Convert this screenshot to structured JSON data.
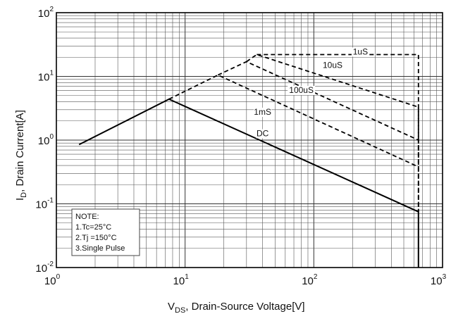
{
  "chart_data": {
    "type": "line",
    "title": "",
    "x_scale": "log",
    "y_scale": "log",
    "xlim": [
      1,
      1000
    ],
    "ylim": [
      0.01,
      100
    ],
    "grid": true,
    "x_ticks": [
      {
        "value": 1,
        "base": "10",
        "exp": "0"
      },
      {
        "value": 10,
        "base": "10",
        "exp": "1"
      },
      {
        "value": 100,
        "base": "10",
        "exp": "2"
      },
      {
        "value": 1000,
        "base": "10",
        "exp": "3"
      }
    ],
    "y_ticks": [
      {
        "value": 0.01,
        "base": "10",
        "exp": "-2"
      },
      {
        "value": 0.1,
        "base": "10",
        "exp": "-1"
      },
      {
        "value": 1,
        "base": "10",
        "exp": "0"
      },
      {
        "value": 10,
        "base": "10",
        "exp": "1"
      },
      {
        "value": 100,
        "base": "10",
        "exp": "2"
      }
    ],
    "xlabel": {
      "main": "V",
      "sub": "DS",
      "rest": ", Drain-Source Voltage[V]"
    },
    "ylabel": {
      "main": "I",
      "sub": "D",
      "rest": ", Drain Current[A]"
    },
    "series": [
      {
        "name": "DC",
        "style": "solid",
        "x": [
          1.5,
          7.5,
          650,
          650
        ],
        "y": [
          0.85,
          4.4,
          0.075,
          0.01
        ]
      },
      {
        "name": "1mS",
        "style": "dashed",
        "x": [
          7.5,
          18,
          650,
          650
        ],
        "y": [
          4.4,
          10.5,
          0.38,
          0.075
        ]
      },
      {
        "name": "100uS",
        "style": "dashed",
        "x": [
          18,
          30,
          650,
          650
        ],
        "y": [
          10.5,
          17,
          1.0,
          0.38
        ]
      },
      {
        "name": "10uS",
        "style": "dashed",
        "x": [
          30,
          36,
          650,
          650
        ],
        "y": [
          17,
          22,
          3.3,
          1.0
        ]
      },
      {
        "name": "1uS",
        "style": "dashed",
        "x": [
          36,
          650,
          650
        ],
        "y": [
          22,
          22,
          0.075
        ]
      }
    ],
    "annotations": [
      {
        "text": "1uS",
        "x": 230,
        "y": 22
      },
      {
        "text": "10uS",
        "x": 140,
        "y": 13.5
      },
      {
        "text": "100uS",
        "x": 80,
        "y": 5.5
      },
      {
        "text": "1mS",
        "x": 40,
        "y": 2.5
      },
      {
        "text": "DC",
        "x": 40,
        "y": 1.15
      }
    ],
    "note": [
      "NOTE:",
      "1.Tc=25°C",
      "2.Tj =150°C",
      "3.Single Pulse"
    ]
  }
}
